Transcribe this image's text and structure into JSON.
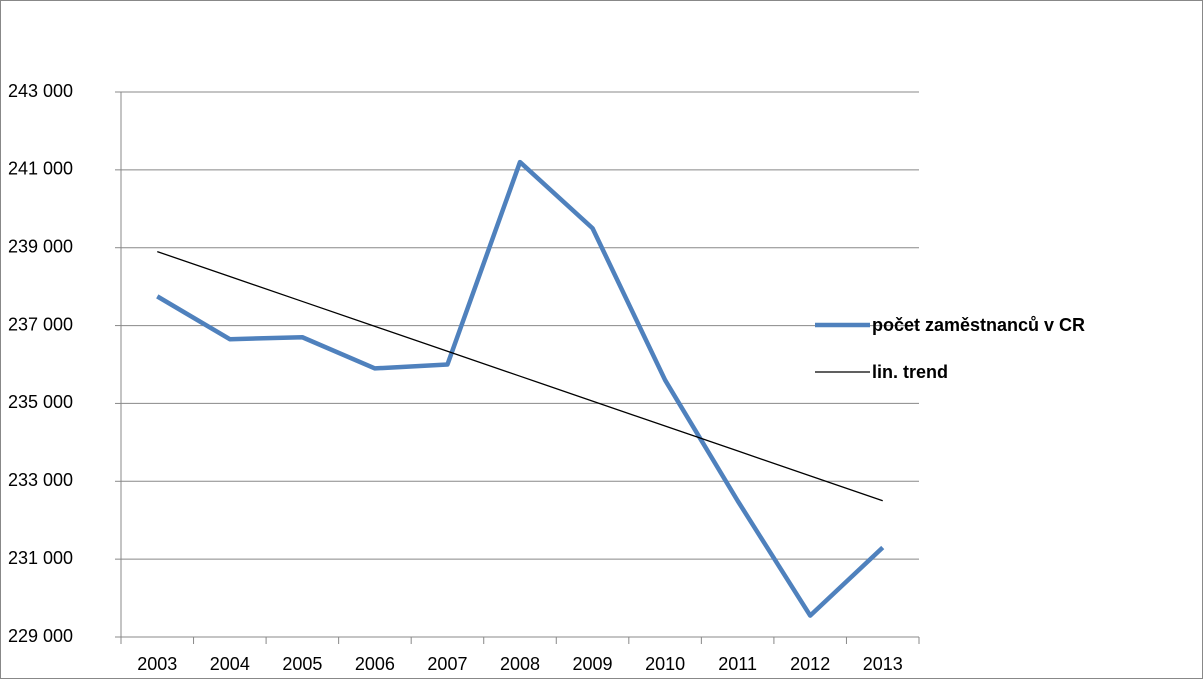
{
  "chart_data": {
    "type": "line",
    "categories": [
      "2003",
      "2004",
      "2005",
      "2006",
      "2007",
      "2008",
      "2009",
      "2010",
      "2011",
      "2012",
      "2013"
    ],
    "series": [
      {
        "name": "počet zaměstnanců v CR",
        "color": "#4f81bd",
        "values": [
          237750,
          236650,
          236700,
          235900,
          236000,
          241200,
          239500,
          235600,
          232500,
          229550,
          231300
        ]
      },
      {
        "name": "lin. trend",
        "color": "#000000",
        "values": [
          238900,
          238260,
          237620,
          236980,
          236340,
          235700,
          235060,
          234420,
          233780,
          233140,
          232500
        ]
      }
    ],
    "ylim": [
      229000,
      243000
    ],
    "yticks": [
      {
        "value": 229000,
        "label": "229 000"
      },
      {
        "value": 231000,
        "label": "231 000"
      },
      {
        "value": 233000,
        "label": "233 000"
      },
      {
        "value": 235000,
        "label": "235 000"
      },
      {
        "value": 237000,
        "label": "237 000"
      },
      {
        "value": 239000,
        "label": "239 000"
      },
      {
        "value": 241000,
        "label": "241 000"
      },
      {
        "value": 243000,
        "label": "243 000"
      }
    ],
    "grid": true,
    "legend": "right"
  }
}
